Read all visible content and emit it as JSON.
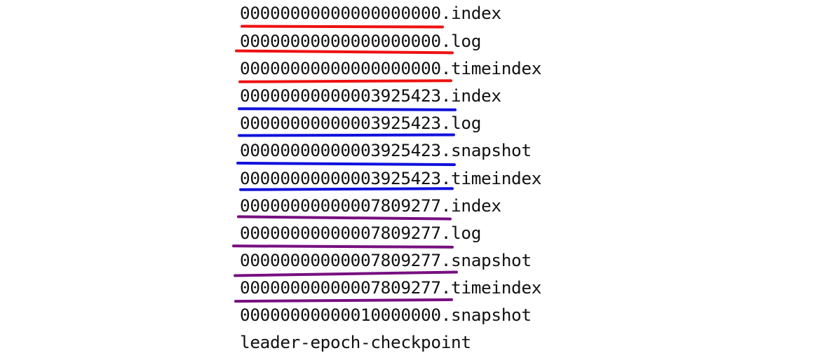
{
  "files": [
    {
      "name": "00000000000000000000.index",
      "group": "segment-0"
    },
    {
      "name": "00000000000000000000.log",
      "group": "segment-0"
    },
    {
      "name": "00000000000000000000.timeindex",
      "group": "segment-0"
    },
    {
      "name": "00000000000003925423.index",
      "group": "segment-3925423"
    },
    {
      "name": "00000000000003925423.log",
      "group": "segment-3925423"
    },
    {
      "name": "00000000000003925423.snapshot",
      "group": "segment-3925423"
    },
    {
      "name": "00000000000003925423.timeindex",
      "group": "segment-3925423"
    },
    {
      "name": "00000000000007809277.index",
      "group": "segment-7809277"
    },
    {
      "name": "00000000000007809277.log",
      "group": "segment-7809277"
    },
    {
      "name": "00000000000007809277.snapshot",
      "group": "segment-7809277"
    },
    {
      "name": "00000000000007809277.timeindex",
      "group": "segment-7809277"
    },
    {
      "name": "00000000000010000000.snapshot",
      "group": "none"
    },
    {
      "name": "leader-epoch-checkpoint",
      "group": "none"
    }
  ],
  "colors": {
    "segment-0": "#ee1111",
    "segment-3925423": "#1111dd",
    "segment-7809277": "#770f80"
  }
}
